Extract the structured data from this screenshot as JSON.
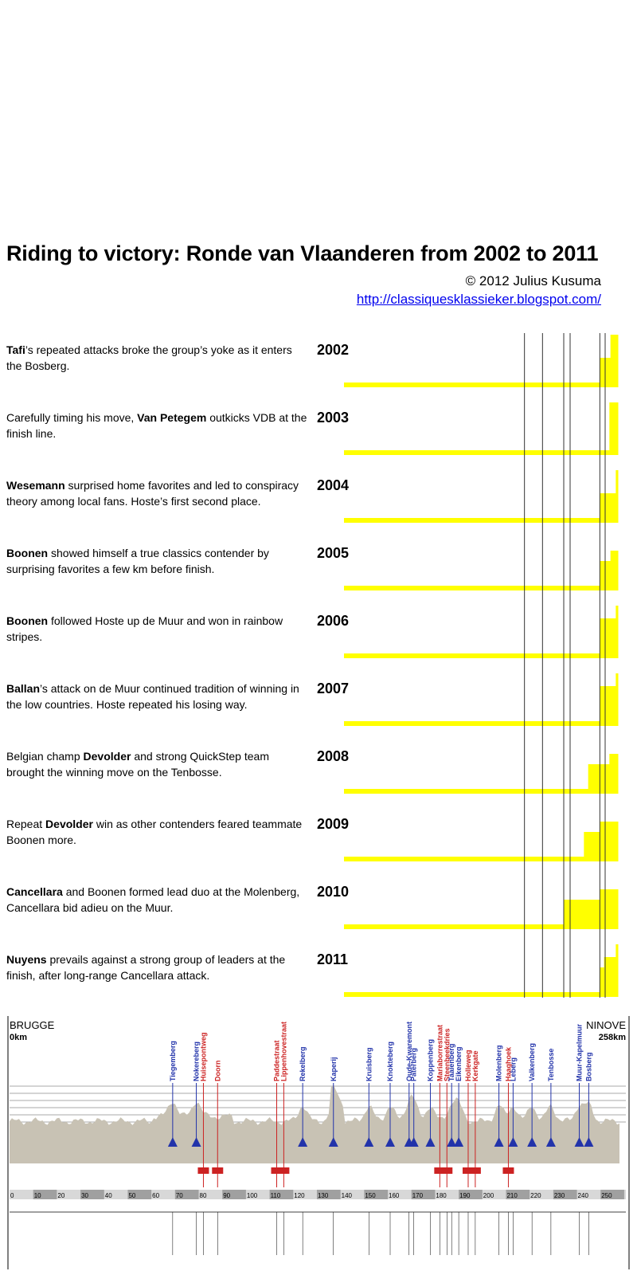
{
  "header": {
    "title": "Riding to victory: Ronde van Vlaanderen from 2002 to 2011",
    "copyright": "© 2012 Julius Kusuma",
    "url": "http://classiquesklassieker.blogspot.com/"
  },
  "colors": {
    "bar": "#ffff00",
    "grid": "#333333",
    "profile": "#c8c2b4",
    "climb_blue": "#2233aa",
    "climb_red": "#cc2222"
  },
  "chart_data": {
    "type": "area",
    "x_unit": "km",
    "xlim": [
      0,
      258
    ],
    "rows": [
      {
        "year": "2002",
        "winner": "Tafi",
        "text": "’s repeated attacks broke the group’s yoke as it enters the Bosberg.",
        "steps": [
          {
            "from_km": 0,
            "level": 1
          },
          {
            "from_km": 241,
            "level": 2
          },
          {
            "from_km": 251,
            "level": 4
          }
        ]
      },
      {
        "year": "2003",
        "winner": "",
        "prefix": "Carefully timing his move, ",
        "bold": "Van Petegem",
        "text": " outkicks VDB at the finish line.",
        "steps": [
          {
            "from_km": 0,
            "level": 1
          },
          {
            "from_km": 250,
            "level": 4
          }
        ]
      },
      {
        "year": "2004",
        "winner": "Wesemann",
        "text": " surprised home favorites and led to conspiracy theory among local fans. Hoste’s first second place.",
        "steps": [
          {
            "from_km": 0,
            "level": 1
          },
          {
            "from_km": 241,
            "level": 2
          },
          {
            "from_km": 256,
            "level": 4
          }
        ]
      },
      {
        "year": "2005",
        "winner": "Boonen",
        "text": " showed himself a true classics contender by surprising favorites a few km before finish.",
        "steps": [
          {
            "from_km": 0,
            "level": 1
          },
          {
            "from_km": 241,
            "level": 2
          },
          {
            "from_km": 251,
            "level": 3
          }
        ]
      },
      {
        "year": "2006",
        "winner": "Boonen",
        "text": " followed Hoste up de Muur and won in rainbow stripes.",
        "steps": [
          {
            "from_km": 0,
            "level": 1
          },
          {
            "from_km": 241,
            "level": 3
          },
          {
            "from_km": 256,
            "level": 4
          }
        ]
      },
      {
        "year": "2007",
        "winner": "Ballan",
        "text": "’s attack on de Muur continued tradition of winning in the low countries. Hoste repeated his losing way.",
        "steps": [
          {
            "from_km": 0,
            "level": 1
          },
          {
            "from_km": 241,
            "level": 3
          },
          {
            "from_km": 256,
            "level": 4
          }
        ]
      },
      {
        "year": "2008",
        "winner": "",
        "prefix": "Belgian champ ",
        "bold": "Devolder",
        "text": " and strong QuickStep team brought the winning move on the Tenbosse.",
        "steps": [
          {
            "from_km": 0,
            "level": 1
          },
          {
            "from_km": 230,
            "level": 2
          },
          {
            "from_km": 250,
            "level": 3
          }
        ]
      },
      {
        "year": "2009",
        "winner": "",
        "prefix": "Repeat ",
        "bold": "Devolder",
        "text": " win as other contenders feared teammate Boonen more.",
        "steps": [
          {
            "from_km": 0,
            "level": 1
          },
          {
            "from_km": 226,
            "level": 2
          },
          {
            "from_km": 241,
            "level": 3
          }
        ]
      },
      {
        "year": "2010",
        "winner": "Cancellara",
        "text": " and Boonen formed lead duo at the Molenberg, Cancellara bid adieu on the Muur.",
        "steps": [
          {
            "from_km": 0,
            "level": 1
          },
          {
            "from_km": 207,
            "level": 2
          },
          {
            "from_km": 241,
            "level": 3
          }
        ]
      },
      {
        "year": "2011",
        "winner": "Nuyens",
        "text": " prevails against a strong group of leaders at the finish, after long-range Cancellara attack.",
        "steps": [
          {
            "from_km": 0,
            "level": 1
          },
          {
            "from_km": 241,
            "level": 2
          },
          {
            "from_km": 245,
            "level": 3
          },
          {
            "from_km": 256,
            "level": 4
          }
        ]
      }
    ],
    "gridlines_km": [
      170,
      187,
      207,
      213,
      241,
      246
    ],
    "profile": {
      "start": "BRUGGE",
      "start_km": "0km",
      "end": "NINOVE",
      "end_km": "258km",
      "km_ticks": [
        0,
        10,
        20,
        30,
        40,
        50,
        60,
        70,
        80,
        90,
        100,
        110,
        120,
        130,
        140,
        150,
        160,
        170,
        180,
        190,
        200,
        210,
        220,
        230,
        240,
        250
      ],
      "climbs": [
        {
          "km": 69,
          "name": "Tiegemberg",
          "n": "1",
          "c": "blue"
        },
        {
          "km": 79,
          "name": "Nokereberg",
          "n": "2",
          "c": "blue"
        },
        {
          "km": 82,
          "name": "Huisepontweg",
          "c": "red"
        },
        {
          "km": 88,
          "name": "Doorn",
          "c": "red"
        },
        {
          "km": 113,
          "name": "Paddestraat",
          "c": "red"
        },
        {
          "km": 116,
          "name": "Lippenhovestraat",
          "c": "red"
        },
        {
          "km": 124,
          "name": "Rekelberg",
          "n": "3",
          "c": "blue"
        },
        {
          "km": 137,
          "name": "Kaperij",
          "n": "4",
          "c": "blue"
        },
        {
          "km": 152,
          "name": "Kruisberg",
          "n": "5",
          "c": "blue"
        },
        {
          "km": 161,
          "name": "Knokteberg",
          "n": "6",
          "c": "blue"
        },
        {
          "km": 169,
          "name": "Oude-Kwaremont",
          "n": "7",
          "c": "blue"
        },
        {
          "km": 171,
          "name": "Paterberg",
          "n": "8",
          "c": "blue"
        },
        {
          "km": 178,
          "name": "Koppenberg",
          "n": "9",
          "c": "blue"
        },
        {
          "km": 182,
          "name": "Mariaborrestraat",
          "c": "red"
        },
        {
          "km": 185,
          "name": "Steenbeekdries",
          "c": "red"
        },
        {
          "km": 187,
          "name": "Taaienberg",
          "n": "10",
          "c": "blue"
        },
        {
          "km": 190,
          "name": "Eikenberg",
          "n": "11",
          "c": "blue"
        },
        {
          "km": 194,
          "name": "Holleweg",
          "c": "red"
        },
        {
          "km": 197,
          "name": "Kerkgate",
          "c": "red"
        },
        {
          "km": 207,
          "name": "Molenberg",
          "n": "12",
          "c": "blue"
        },
        {
          "km": 211,
          "name": "Haaghoek",
          "c": "red"
        },
        {
          "km": 213,
          "name": "Leberg",
          "n": "13",
          "c": "blue"
        },
        {
          "km": 221,
          "name": "Valkenberg",
          "n": "14",
          "c": "blue"
        },
        {
          "km": 229,
          "name": "Tenbosse",
          "n": "15",
          "c": "blue"
        },
        {
          "km": 241,
          "name": "Muur-Kapelmuur",
          "n": "16",
          "c": "blue"
        },
        {
          "km": 245,
          "name": "Bosberg",
          "n": "17",
          "c": "blue"
        }
      ]
    }
  }
}
